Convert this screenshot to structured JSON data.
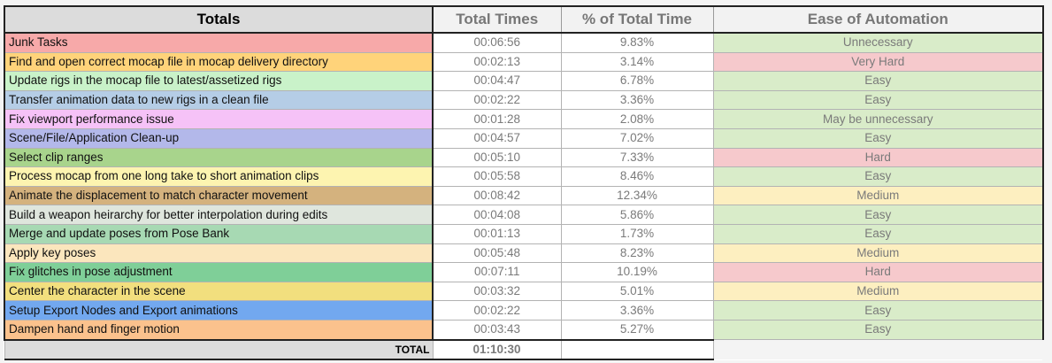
{
  "headers": {
    "task": "Totals",
    "time": "Total Times",
    "pct": "% of Total Time",
    "ease": "Ease of Automation"
  },
  "rows": [
    {
      "task": "Junk Tasks",
      "time": "00:06:56",
      "pct": "9.83%",
      "ease": "Unnecessary",
      "task_color": "#f7a9a9",
      "ease_color": "#d9ecc9"
    },
    {
      "task": "Find and open correct mocap file in mocap delivery directory",
      "time": "00:02:13",
      "pct": "3.14%",
      "ease": "Very Hard",
      "task_color": "#ffd37a",
      "ease_color": "#f6c9cc"
    },
    {
      "task": "Update rigs in the mocap file to latest/assetized rigs",
      "time": "00:04:47",
      "pct": "6.78%",
      "ease": "Easy",
      "task_color": "#c9f2c9",
      "ease_color": "#d9ecc9"
    },
    {
      "task": "Transfer animation data to new rigs in a clean file",
      "time": "00:02:22",
      "pct": "3.36%",
      "ease": "Easy",
      "task_color": "#b5cde6",
      "ease_color": "#d9ecc9"
    },
    {
      "task": "Fix viewport performance issue",
      "time": "00:01:28",
      "pct": "2.08%",
      "ease": "May be unnecessary",
      "task_color": "#f6c2f7",
      "ease_color": "#d9ecc9"
    },
    {
      "task": "Scene/File/Application Clean-up",
      "time": "00:04:57",
      "pct": "7.02%",
      "ease": "Easy",
      "task_color": "#b3b8ea",
      "ease_color": "#d9ecc9"
    },
    {
      "task": "Select clip ranges",
      "time": "00:05:10",
      "pct": "7.33%",
      "ease": "Hard",
      "task_color": "#a8d48c",
      "ease_color": "#f6c9cc"
    },
    {
      "task": "Process mocap from one long take to short animation clips",
      "time": "00:05:58",
      "pct": "8.46%",
      "ease": "Easy",
      "task_color": "#fdf4b0",
      "ease_color": "#d9ecc9"
    },
    {
      "task": "Animate the displacement to match character movement",
      "time": "00:08:42",
      "pct": "12.34%",
      "ease": "Medium",
      "task_color": "#d4b27e",
      "ease_color": "#fdefc0"
    },
    {
      "task": "Build a weapon heirarchy for better interpolation during edits",
      "time": "00:04:08",
      "pct": "5.86%",
      "ease": "Easy",
      "task_color": "#dfe6dd",
      "ease_color": "#d9ecc9"
    },
    {
      "task": "Merge and update poses from Pose Bank",
      "time": "00:01:13",
      "pct": "1.73%",
      "ease": "Easy",
      "task_color": "#a7d9b3",
      "ease_color": "#d9ecc9"
    },
    {
      "task": "Apply key poses",
      "time": "00:05:48",
      "pct": "8.23%",
      "ease": "Medium",
      "task_color": "#fbe6bd",
      "ease_color": "#fdefc0"
    },
    {
      "task": "Fix glitches in pose adjustment",
      "time": "00:07:11",
      "pct": "10.19%",
      "ease": "Hard",
      "task_color": "#7fcf98",
      "ease_color": "#f6c9cc"
    },
    {
      "task": "Center the character in the scene",
      "time": "00:03:32",
      "pct": "5.01%",
      "ease": "Medium",
      "task_color": "#f2df7e",
      "ease_color": "#fdefc0"
    },
    {
      "task": "Setup Export Nodes and Export animations",
      "time": "00:02:22",
      "pct": "3.36%",
      "ease": "Easy",
      "task_color": "#72a8ef",
      "ease_color": "#d9ecc9"
    },
    {
      "task": "Dampen hand and finger motion",
      "time": "00:03:43",
      "pct": "5.27%",
      "ease": "Easy",
      "task_color": "#fbc28d",
      "ease_color": "#d9ecc9"
    }
  ],
  "total": {
    "label": "TOTAL",
    "time": "01:10:30"
  }
}
